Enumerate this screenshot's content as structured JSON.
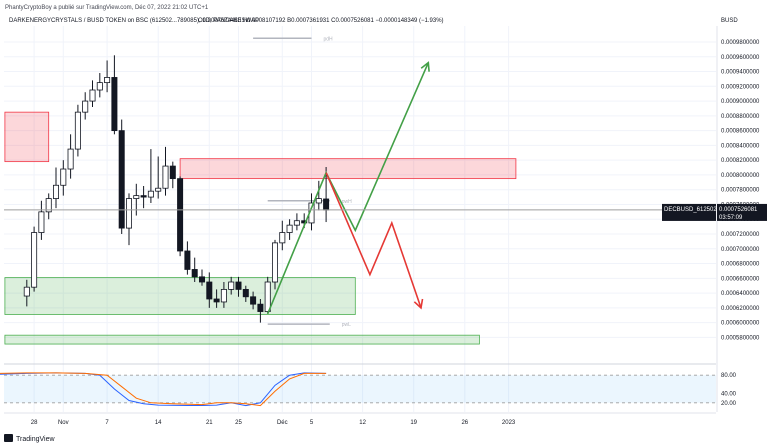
{
  "header": {
    "publish_line": "PhantyCryptoBoy a publié sur TradingView.com, Déc 07, 2022 21:02 UTC+1",
    "symbol_line": "DARKENERGYCRYSTALS / BUSD TOKEN on BSC (612502...789085), 1D, PANCAKESWAP",
    "ohlc": "O0.0007674430 H0.0008107192 B0.0007361931 C0.0007526081 −0.0000148349 (−1.93%)",
    "currency": "BUSD"
  },
  "price_axis": {
    "ticks": [
      0.00098,
      0.00096,
      0.00094,
      0.00092,
      0.0009,
      0.00088,
      0.00086,
      0.00084,
      0.00082,
      0.0008,
      0.00078,
      0.00076,
      0.00074,
      0.00072,
      0.0007,
      0.00068,
      0.00066,
      0.00064,
      0.00062,
      0.0006,
      0.00058
    ],
    "tick_labels": [
      "0.0009800000",
      "0.0009600000",
      "0.0009400000",
      "0.0009200000",
      "0.0009000000",
      "0.0008800000",
      "0.0008600000",
      "0.0008400000",
      "0.0008200000",
      "0.0008000000",
      "0.0007800000",
      "0.0007600000",
      "0.0007400000",
      "0.0007200000",
      "0.0007000000",
      "0.0006800000",
      "0.0006600000",
      "0.0006400000",
      "0.0006200000",
      "0.0006000000",
      "0.0005800000"
    ]
  },
  "price_tag": {
    "symbol": "DECBUSD_612502",
    "value": "0.0007526081",
    "countdown": "03:57:09",
    "price": 0.0007526081
  },
  "time_axis": {
    "labels": [
      {
        "label": "28",
        "day": -3
      },
      {
        "label": "Nov",
        "day": 1
      },
      {
        "label": "7",
        "day": 7
      },
      {
        "label": "14",
        "day": 14
      },
      {
        "label": "21",
        "day": 21
      },
      {
        "label": "25",
        "day": 25
      },
      {
        "label": "Déc",
        "day": 31
      },
      {
        "label": "5",
        "day": 35
      },
      {
        "label": "12",
        "day": 42
      },
      {
        "label": "19",
        "day": 49
      },
      {
        "label": "26",
        "day": 56
      },
      {
        "label": "2023",
        "day": 62
      }
    ]
  },
  "level_labels": {
    "pwh": "pwH",
    "pwl": "pwL"
  },
  "oscillator": {
    "levels": [
      80,
      20
    ],
    "tick_labels": [
      "80.00",
      "40.00",
      "20.00"
    ]
  },
  "footer": {
    "brand": "TradingView"
  },
  "chart_data": {
    "type": "candlestick",
    "title": "DARKENERGYCRYSTALS / BUSD TOKEN on BSC (612502...789085), 1D, PANCAKESWAP",
    "x_unit": "day (Oct 31, 2022 = 0)",
    "ylim": [
      0.000572,
      0.001
    ],
    "candles": [
      {
        "d": -4,
        "o": 0.000636,
        "h": 0.000658,
        "l": 0.000622,
        "c": 0.000648
      },
      {
        "d": -3,
        "o": 0.000648,
        "h": 0.00073,
        "l": 0.000642,
        "c": 0.000722
      },
      {
        "d": -2,
        "o": 0.000722,
        "h": 0.000765,
        "l": 0.000712,
        "c": 0.00075
      },
      {
        "d": -1,
        "o": 0.00075,
        "h": 0.000775,
        "l": 0.00074,
        "c": 0.000768
      },
      {
        "d": 0,
        "o": 0.000768,
        "h": 0.00081,
        "l": 0.000755,
        "c": 0.000786
      },
      {
        "d": 1,
        "o": 0.000786,
        "h": 0.00082,
        "l": 0.000772,
        "c": 0.000808
      },
      {
        "d": 2,
        "o": 0.000808,
        "h": 0.000855,
        "l": 0.000795,
        "c": 0.000835
      },
      {
        "d": 3,
        "o": 0.000835,
        "h": 0.000895,
        "l": 0.000825,
        "c": 0.000885
      },
      {
        "d": 4,
        "o": 0.000885,
        "h": 0.000912,
        "l": 0.000875,
        "c": 0.0009
      },
      {
        "d": 5,
        "o": 0.0009,
        "h": 0.000928,
        "l": 0.000892,
        "c": 0.000915
      },
      {
        "d": 6,
        "o": 0.000915,
        "h": 0.000938,
        "l": 0.000905,
        "c": 0.000925
      },
      {
        "d": 7,
        "o": 0.000925,
        "h": 0.000955,
        "l": 0.000912,
        "c": 0.000932
      },
      {
        "d": 8,
        "o": 0.000932,
        "h": 0.000962,
        "l": 0.000855,
        "c": 0.00086
      },
      {
        "d": 9,
        "o": 0.00086,
        "h": 0.000875,
        "l": 0.00072,
        "c": 0.000728
      },
      {
        "d": 10,
        "o": 0.000728,
        "h": 0.000775,
        "l": 0.000705,
        "c": 0.000768
      },
      {
        "d": 11,
        "o": 0.000768,
        "h": 0.000788,
        "l": 0.000745,
        "c": 0.000772
      },
      {
        "d": 12,
        "o": 0.000772,
        "h": 0.000785,
        "l": 0.000755,
        "c": 0.00077
      },
      {
        "d": 13,
        "o": 0.00077,
        "h": 0.000835,
        "l": 0.000762,
        "c": 0.000778
      },
      {
        "d": 14,
        "o": 0.000778,
        "h": 0.000825,
        "l": 0.000768,
        "c": 0.000782
      },
      {
        "d": 15,
        "o": 0.000782,
        "h": 0.000838,
        "l": 0.000772,
        "c": 0.000812
      },
      {
        "d": 16,
        "o": 0.000812,
        "h": 0.000818,
        "l": 0.000782,
        "c": 0.000795
      },
      {
        "d": 17,
        "o": 0.000795,
        "h": 0.000798,
        "l": 0.00069,
        "c": 0.000697
      },
      {
        "d": 18,
        "o": 0.000697,
        "h": 0.00071,
        "l": 0.000665,
        "c": 0.000672
      },
      {
        "d": 19,
        "o": 0.000672,
        "h": 0.000688,
        "l": 0.000655,
        "c": 0.000662
      },
      {
        "d": 20,
        "o": 0.000662,
        "h": 0.000672,
        "l": 0.00065,
        "c": 0.000655
      },
      {
        "d": 21,
        "o": 0.000655,
        "h": 0.000668,
        "l": 0.00062,
        "c": 0.000632
      },
      {
        "d": 22,
        "o": 0.000632,
        "h": 0.000645,
        "l": 0.00062,
        "c": 0.000628
      },
      {
        "d": 23,
        "o": 0.000628,
        "h": 0.000655,
        "l": 0.00062,
        "c": 0.000645
      },
      {
        "d": 24,
        "o": 0.000645,
        "h": 0.000662,
        "l": 0.000638,
        "c": 0.000655
      },
      {
        "d": 25,
        "o": 0.000655,
        "h": 0.000662,
        "l": 0.000635,
        "c": 0.000645
      },
      {
        "d": 26,
        "o": 0.000645,
        "h": 0.00065,
        "l": 0.000628,
        "c": 0.000635
      },
      {
        "d": 27,
        "o": 0.000635,
        "h": 0.000642,
        "l": 0.000618,
        "c": 0.000625
      },
      {
        "d": 28,
        "o": 0.000625,
        "h": 0.000632,
        "l": 0.0006,
        "c": 0.000615
      },
      {
        "d": 29,
        "o": 0.000615,
        "h": 0.000662,
        "l": 0.000612,
        "c": 0.000655
      },
      {
        "d": 30,
        "o": 0.000655,
        "h": 0.000712,
        "l": 0.000645,
        "c": 0.000708
      },
      {
        "d": 31,
        "o": 0.000708,
        "h": 0.000738,
        "l": 0.000698,
        "c": 0.000722
      },
      {
        "d": 32,
        "o": 0.000722,
        "h": 0.00074,
        "l": 0.000712,
        "c": 0.000732
      },
      {
        "d": 33,
        "o": 0.000732,
        "h": 0.000748,
        "l": 0.000725,
        "c": 0.000738
      },
      {
        "d": 34,
        "o": 0.000738,
        "h": 0.000748,
        "l": 0.000728,
        "c": 0.000735
      },
      {
        "d": 35,
        "o": 0.000735,
        "h": 0.000775,
        "l": 0.000725,
        "c": 0.000762
      },
      {
        "d": 36,
        "o": 0.000762,
        "h": 0.000792,
        "l": 0.000752,
        "c": 0.000768
      },
      {
        "d": 37,
        "o": 0.000767443,
        "h": 0.0008107192,
        "l": 0.0007361931,
        "c": 0.0007526081
      }
    ],
    "zones": [
      {
        "name": "resistance-left",
        "color": "red",
        "d0": -7,
        "d1": -1,
        "y0": 0.000818,
        "y1": 0.000885
      },
      {
        "name": "resistance-right",
        "color": "red",
        "d0": 17,
        "d1": 63,
        "y0": 0.000795,
        "y1": 0.000822
      },
      {
        "name": "support",
        "color": "green",
        "d0": -7,
        "d1": 41,
        "y0": 0.000611,
        "y1": 0.000661
      },
      {
        "name": "lower-zone",
        "color": "green",
        "d0": -7,
        "d1": 58,
        "y0": 0.000571,
        "y1": 0.000583
      }
    ],
    "levels": [
      {
        "name": "pwH",
        "d0": 29,
        "d1": 37.5,
        "y": 0.000765
      },
      {
        "name": "pwL",
        "d0": 29,
        "d1": 37.5,
        "y": 0.000598
      },
      {
        "name": "pdH",
        "d0": 27,
        "d1": 35,
        "y": 0.000985
      }
    ],
    "projections": {
      "green": [
        [
          29,
          0.000612
        ],
        [
          37,
          0.000803
        ],
        [
          41,
          0.000725
        ],
        [
          51,
          0.000952
        ]
      ],
      "red": [
        [
          37,
          0.000803
        ],
        [
          43,
          0.000665
        ],
        [
          46,
          0.000735
        ],
        [
          50,
          0.00062
        ]
      ]
    },
    "oscillator": {
      "type": "line",
      "series": [
        {
          "color": "#2962ff",
          "values": [
            [
              -8,
              82
            ],
            [
              -4,
              84
            ],
            [
              0,
              85
            ],
            [
              4,
              84
            ],
            [
              6,
              80
            ],
            [
              8,
              50
            ],
            [
              10,
              25
            ],
            [
              12,
              18
            ],
            [
              14,
              15
            ],
            [
              18,
              14
            ],
            [
              20,
              14
            ],
            [
              22,
              15
            ],
            [
              24,
              20
            ],
            [
              26,
              14
            ],
            [
              28,
              20
            ],
            [
              30,
              58
            ],
            [
              32,
              80
            ],
            [
              34,
              85
            ],
            [
              37,
              84
            ]
          ]
        },
        {
          "color": "#ff6d00",
          "values": [
            [
              -8,
              84
            ],
            [
              -4,
              85
            ],
            [
              0,
              85
            ],
            [
              4,
              84
            ],
            [
              7,
              80
            ],
            [
              9,
              55
            ],
            [
              11,
              30
            ],
            [
              13,
              20
            ],
            [
              16,
              18
            ],
            [
              20,
              16
            ],
            [
              22,
              20
            ],
            [
              24,
              20
            ],
            [
              26,
              18
            ],
            [
              28,
              14
            ],
            [
              30,
              45
            ],
            [
              32,
              72
            ],
            [
              34,
              84
            ],
            [
              37,
              84
            ]
          ]
        }
      ]
    }
  }
}
